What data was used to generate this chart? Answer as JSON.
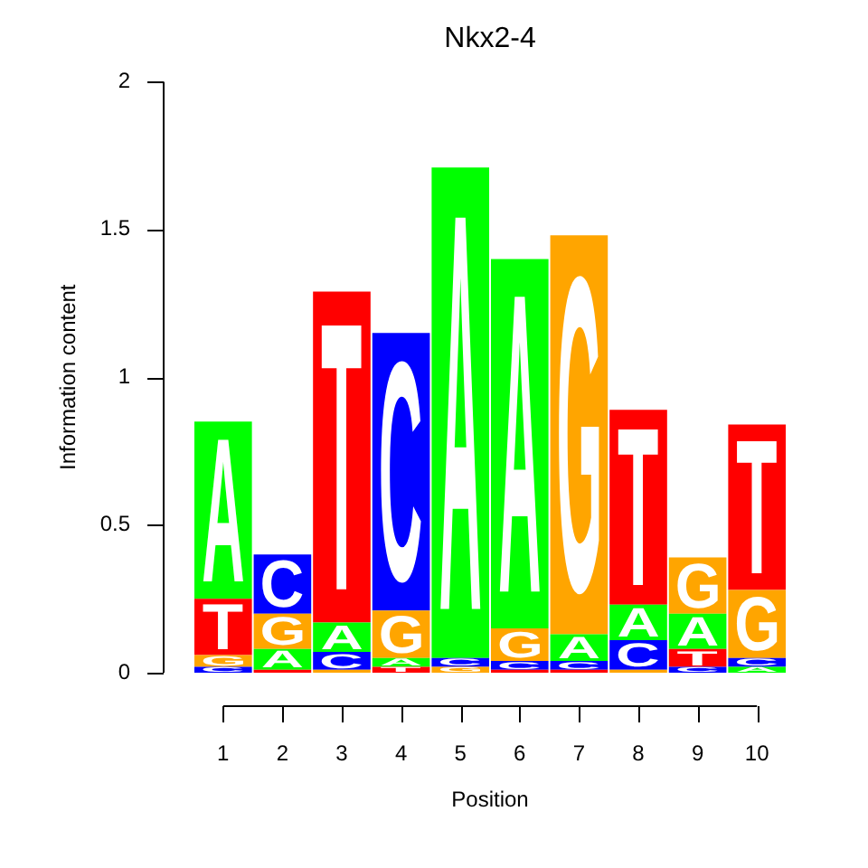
{
  "chart_data": {
    "type": "bar",
    "title": "Nkx2-4",
    "xlabel": "Position",
    "ylabel": "Information content",
    "categories": [
      "1",
      "2",
      "3",
      "4",
      "5",
      "6",
      "7",
      "8",
      "9",
      "10"
    ],
    "stacked": true,
    "ylim": [
      0,
      2
    ],
    "yticks": [
      0,
      0.5,
      1,
      1.5,
      2
    ],
    "series": [
      {
        "values": [
          0.02,
          0.01,
          0.01,
          0.02,
          null,
          0.01,
          0.01,
          0.01,
          0.02,
          0.02
        ],
        "colors": [
          "#0000ff",
          "#ff0000",
          "#ffa500",
          "#ff0000",
          "#ffffff",
          "#ff0000",
          "#ff0000",
          "#ffa500",
          "#0000ff",
          "#00ff00"
        ],
        "value_labels": [
          "C",
          null,
          null,
          "T",
          null,
          null,
          null,
          null,
          "C",
          "A"
        ]
      },
      {
        "values": [
          0.04,
          0.07,
          0.06,
          0.03,
          0.02,
          0.03,
          0.03,
          0.1,
          0.06,
          0.03
        ],
        "colors": [
          "#ffa500",
          "#00ff00",
          "#0000ff",
          "#00ff00",
          "#ffa500",
          "#0000ff",
          "#0000ff",
          "#0000ff",
          "#ff0000",
          "#0000ff"
        ],
        "value_labels": [
          "G",
          "A",
          "C",
          "A",
          "G",
          "C",
          "C",
          "C",
          "T",
          "C"
        ]
      },
      {
        "values": [
          0.19,
          0.12,
          0.1,
          0.16,
          0.03,
          0.11,
          0.09,
          0.12,
          0.12,
          0.23
        ],
        "colors": [
          "#ff0000",
          "#ffa500",
          "#00ff00",
          "#ffa500",
          "#0000ff",
          "#ffa500",
          "#00ff00",
          "#00ff00",
          "#00ff00",
          "#ffa500"
        ],
        "value_labels": [
          "T",
          "G",
          "A",
          "G",
          "C",
          "G",
          "A",
          "A",
          "A",
          "G"
        ]
      },
      {
        "values": [
          0.6,
          0.2,
          1.12,
          0.94,
          1.66,
          1.25,
          1.35,
          0.66,
          0.19,
          0.56
        ],
        "colors": [
          "#00ff00",
          "#0000ff",
          "#ff0000",
          "#0000ff",
          "#00ff00",
          "#00ff00",
          "#ffa500",
          "#ff0000",
          "#ffa500",
          "#ff0000"
        ],
        "value_labels": [
          "A",
          "C",
          "T",
          "C",
          "A",
          "A",
          "G",
          "T",
          "G",
          "T"
        ]
      }
    ]
  }
}
